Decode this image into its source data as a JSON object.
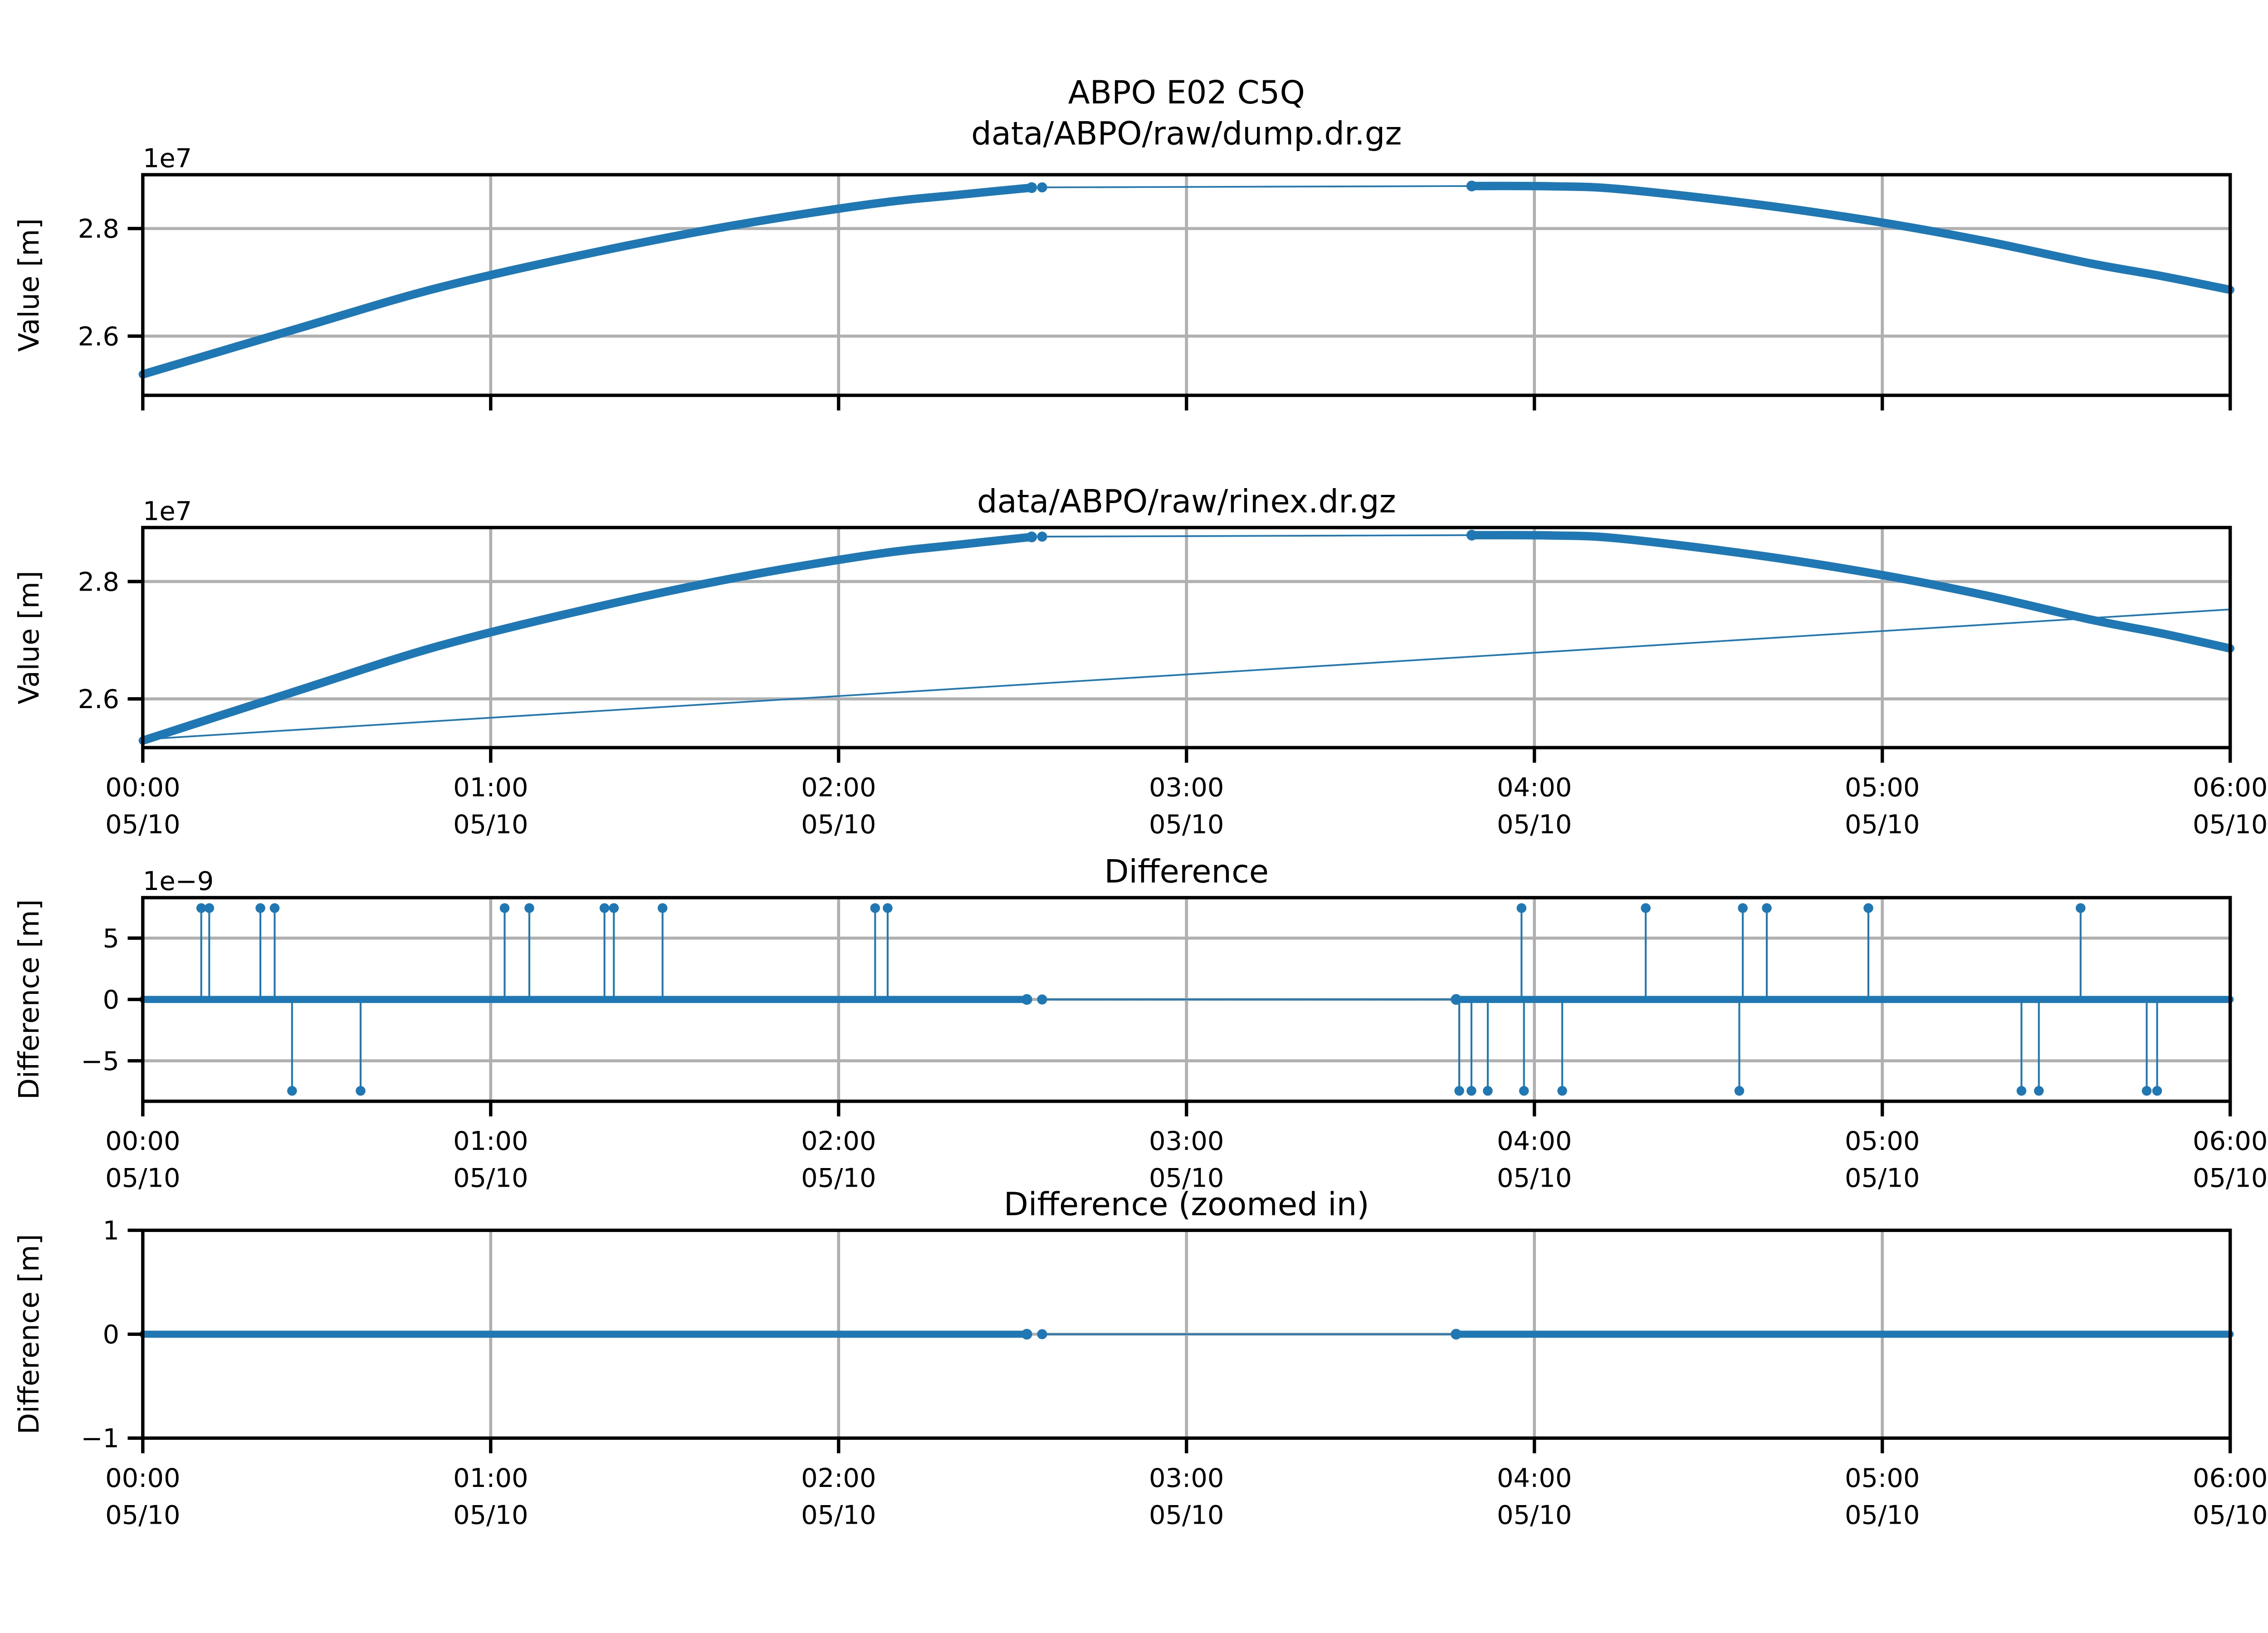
{
  "figure": {
    "suptitle": "ABPO E02 C5Q",
    "background": "#ffffff"
  },
  "colors": {
    "series": "#1f77b4",
    "grid": "#b0b0b0",
    "spine": "#000000",
    "text": "#000000"
  },
  "x_axis": {
    "hours": [
      0,
      1,
      2,
      3,
      4,
      5,
      6
    ],
    "time_labels": [
      "00:00",
      "01:00",
      "02:00",
      "03:00",
      "04:00",
      "05:00",
      "06:00"
    ],
    "date_label": "05/10"
  },
  "chart_data": [
    {
      "id": "dump",
      "type": "line",
      "title": "data/ABPO/raw/dump.dr.gz",
      "ylabel": "Value [m]",
      "offset_label": "1e7",
      "unit_scale": 10000000,
      "ylim": [
        2.49,
        2.9
      ],
      "yticks": [
        {
          "v": 2.8,
          "label": "2.8"
        },
        {
          "v": 2.6,
          "label": "2.6"
        }
      ],
      "show_x_labels": false,
      "series": [
        {
          "kind": "line",
          "style": "thick",
          "smooth": true,
          "name": "dump-arc-pre-gap",
          "points": [
            [
              0.0,
              2.529
            ],
            [
              0.45,
              2.615
            ],
            [
              0.85,
              2.69
            ],
            [
              1.3,
              2.756
            ],
            [
              1.7,
              2.806
            ],
            [
              2.1,
              2.846
            ],
            [
              2.35,
              2.863
            ],
            [
              2.555,
              2.876
            ]
          ]
        },
        {
          "kind": "cap",
          "t": 2.555,
          "v": 2.876
        },
        {
          "kind": "point",
          "t": 2.585,
          "v": 2.8765
        },
        {
          "kind": "line",
          "style": "thin",
          "smooth": false,
          "name": "dump-gap-connector",
          "points": [
            [
              2.585,
              2.8765
            ],
            [
              3.82,
              2.879
            ]
          ]
        },
        {
          "kind": "cap",
          "t": 3.82,
          "v": 2.879
        },
        {
          "kind": "line",
          "style": "thick",
          "smooth": true,
          "name": "dump-arc-post-gap",
          "points": [
            [
              3.82,
              2.879
            ],
            [
              4.05,
              2.8785
            ],
            [
              4.25,
              2.873
            ],
            [
              4.65,
              2.844
            ],
            [
              5.0,
              2.811
            ],
            [
              5.3,
              2.776
            ],
            [
              5.6,
              2.735
            ],
            [
              5.8,
              2.712
            ],
            [
              6.0,
              2.686
            ]
          ]
        }
      ]
    },
    {
      "id": "rinex",
      "type": "line",
      "title": "data/ABPO/raw/rinex.dr.gz",
      "ylabel": "Value [m]",
      "offset_label": "1e7",
      "unit_scale": 10000000,
      "ylim": [
        2.517,
        2.892
      ],
      "yticks": [
        {
          "v": 2.8,
          "label": "2.8"
        },
        {
          "v": 2.6,
          "label": "2.6"
        }
      ],
      "show_x_labels": true,
      "series": [
        {
          "kind": "line",
          "style": "thin",
          "smooth": false,
          "name": "rinex-second-arc",
          "points": [
            [
              0.0,
              2.531
            ],
            [
              6.0,
              2.7525
            ]
          ]
        },
        {
          "kind": "line",
          "style": "thick",
          "smooth": true,
          "name": "rinex-arc-pre-gap",
          "points": [
            [
              0.0,
              2.529
            ],
            [
              0.45,
              2.615
            ],
            [
              0.85,
              2.69
            ],
            [
              1.3,
              2.756
            ],
            [
              1.7,
              2.806
            ],
            [
              2.1,
              2.846
            ],
            [
              2.35,
              2.863
            ],
            [
              2.555,
              2.876
            ]
          ]
        },
        {
          "kind": "cap",
          "t": 2.555,
          "v": 2.876
        },
        {
          "kind": "point",
          "t": 2.585,
          "v": 2.8765
        },
        {
          "kind": "line",
          "style": "thin",
          "smooth": false,
          "name": "rinex-gap-connector",
          "points": [
            [
              2.585,
              2.8765
            ],
            [
              3.82,
              2.879
            ]
          ]
        },
        {
          "kind": "cap",
          "t": 3.82,
          "v": 2.879
        },
        {
          "kind": "line",
          "style": "thick",
          "smooth": true,
          "name": "rinex-arc-post-gap",
          "points": [
            [
              3.82,
              2.879
            ],
            [
              4.05,
              2.8785
            ],
            [
              4.25,
              2.873
            ],
            [
              4.65,
              2.844
            ],
            [
              5.0,
              2.811
            ],
            [
              5.3,
              2.776
            ],
            [
              5.6,
              2.735
            ],
            [
              5.8,
              2.712
            ],
            [
              6.0,
              2.686
            ]
          ]
        }
      ]
    },
    {
      "id": "difference",
      "type": "stem",
      "title": "Difference",
      "ylabel": "Difference [m]",
      "offset_label": "1e−9",
      "unit_scale": 1e-09,
      "ylim": [
        -8.3,
        8.3
      ],
      "yticks": [
        {
          "v": 5,
          "label": "5"
        },
        {
          "v": 0,
          "label": "0"
        },
        {
          "v": -5,
          "label": "−5"
        }
      ],
      "show_x_labels": true,
      "series": [
        {
          "kind": "line",
          "style": "band",
          "smooth": false,
          "name": "zero-band-pre-gap",
          "points": [
            [
              0.0,
              0
            ],
            [
              2.541,
              0
            ]
          ]
        },
        {
          "kind": "cap",
          "t": 2.541,
          "v": 0
        },
        {
          "kind": "point",
          "t": 2.585,
          "v": 0
        },
        {
          "kind": "line",
          "style": "thin",
          "smooth": false,
          "name": "zero-gap-connector",
          "points": [
            [
              2.585,
              0
            ],
            [
              3.775,
              0
            ]
          ]
        },
        {
          "kind": "cap",
          "t": 3.775,
          "v": 0
        },
        {
          "kind": "line",
          "style": "band",
          "smooth": false,
          "name": "zero-band-post-gap",
          "points": [
            [
              3.775,
              0
            ],
            [
              6.0,
              0
            ]
          ]
        },
        {
          "kind": "stems",
          "value": 7.45,
          "name": "positive-spikes",
          "times": [
            0.168,
            0.191,
            0.338,
            0.379,
            1.04,
            1.111,
            1.327,
            1.354,
            1.494,
            2.105,
            2.141,
            3.963,
            4.32,
            4.599,
            4.668,
            4.96,
            5.57
          ]
        },
        {
          "kind": "stems",
          "value": -7.45,
          "name": "negative-spikes",
          "times": [
            0.429,
            0.626,
            3.784,
            3.819,
            3.866,
            3.97,
            4.08,
            4.589,
            5.4,
            5.45,
            5.76,
            5.79
          ]
        }
      ]
    },
    {
      "id": "difference-zoomed",
      "type": "line",
      "title": "Difference (zoomed in)",
      "ylabel": "Difference [m]",
      "offset_label": "",
      "unit_scale": 1,
      "ylim": [
        -1,
        1
      ],
      "yticks": [
        {
          "v": 1,
          "label": "1"
        },
        {
          "v": 0,
          "label": "0"
        },
        {
          "v": -1,
          "label": "−1"
        }
      ],
      "show_x_labels": true,
      "series": [
        {
          "kind": "line",
          "style": "band",
          "smooth": false,
          "name": "zero-band-pre-gap",
          "points": [
            [
              0.0,
              0
            ],
            [
              2.541,
              0
            ]
          ]
        },
        {
          "kind": "cap",
          "t": 2.541,
          "v": 0
        },
        {
          "kind": "point",
          "t": 2.585,
          "v": 0
        },
        {
          "kind": "line",
          "style": "thin",
          "smooth": false,
          "name": "zero-gap-connector",
          "points": [
            [
              2.585,
              0
            ],
            [
              3.775,
              0
            ]
          ]
        },
        {
          "kind": "cap",
          "t": 3.775,
          "v": 0
        },
        {
          "kind": "line",
          "style": "band",
          "smooth": false,
          "name": "zero-band-post-gap",
          "points": [
            [
              3.775,
              0
            ],
            [
              6.0,
              0
            ]
          ]
        }
      ]
    }
  ]
}
